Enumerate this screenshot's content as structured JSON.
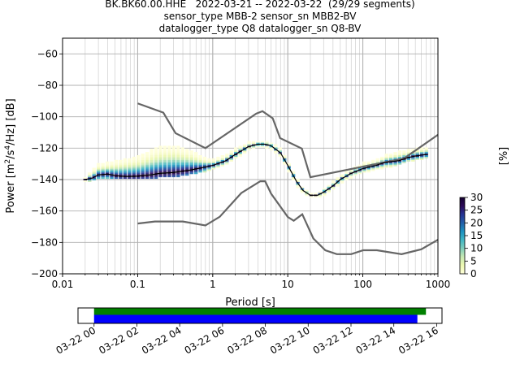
{
  "title_lines": [
    "BK.BK60.00.HHE   2022-03-21 -- 2022-03-22  (29/29 segments)",
    "sensor_type MBB-2 sensor_sn MBB2-BV",
    "datalogger_type Q8 datalogger_sn Q8-BV"
  ],
  "chart_data": [
    {
      "type": "heatmap",
      "xlabel": "Period [s]",
      "ylabel_parts": [
        "Power [",
        "m",
        "2",
        "/",
        "s",
        "4",
        "/",
        "Hz",
        "] [dB]"
      ],
      "xscale": "log",
      "xlim": [
        0.01,
        1000
      ],
      "ylim": [
        -200,
        -50
      ],
      "x_ticks": [
        0.01,
        0.1,
        1,
        10,
        100,
        1000
      ],
      "x_tick_labels": [
        "0.01",
        "0.1",
        "1",
        "10",
        "100",
        "1000"
      ],
      "y_ticks": [
        -200,
        -180,
        -160,
        -140,
        -120,
        -100,
        -80,
        -60
      ],
      "y_tick_labels": [
        "−200",
        "−180",
        "−160",
        "−140",
        "−120",
        "−100",
        "−80",
        "−60"
      ],
      "grid": true,
      "colorbar": {
        "label": "[%]",
        "range": [
          0,
          30
        ],
        "ticks": [
          0,
          5,
          10,
          15,
          20,
          25,
          30
        ],
        "tick_labels": [
          "0",
          "5",
          "10",
          "15",
          "20",
          "25",
          "30"
        ],
        "colormap": [
          "#ffffd9",
          "#edf8b1",
          "#c7e9b4",
          "#7fcdbb",
          "#41b6c4",
          "#1d91c0",
          "#225ea8",
          "#253494",
          "#2c0a57",
          "#140030"
        ]
      },
      "series": [
        {
          "kind": "noise_model_high",
          "color": "#666666",
          "x": [
            0.1,
            0.22,
            0.32,
            0.8,
            3.8,
            4.6,
            6.3,
            7.9,
            15.4,
            20,
            354,
            1000
          ],
          "y": [
            -91.5,
            -97.4,
            -110.5,
            -120,
            -98,
            -96.5,
            -101,
            -113.6,
            -120.3,
            -138.5,
            -126.5,
            -111.5
          ]
        },
        {
          "kind": "noise_model_low",
          "color": "#666666",
          "x": [
            0.1,
            0.17,
            0.4,
            0.8,
            1.24,
            2.4,
            4.3,
            5,
            6,
            10,
            12,
            15.6,
            21.9,
            31.6,
            45,
            70,
            101,
            154,
            328,
            600,
            1000
          ],
          "y": [
            -168,
            -166.7,
            -166.7,
            -169.2,
            -163.7,
            -148.6,
            -141.1,
            -141.1,
            -149,
            -163.8,
            -166.2,
            -162.1,
            -177.5,
            -185,
            -187.5,
            -187.5,
            -185,
            -185,
            -187.5,
            -184.4,
            -178.3
          ]
        },
        {
          "kind": "psd_mode",
          "color": "#000000",
          "x": [
            0.02,
            0.025,
            0.03,
            0.04,
            0.05,
            0.07,
            0.1,
            0.15,
            0.2,
            0.3,
            0.5,
            0.8,
            1,
            1.5,
            2,
            3,
            4,
            5,
            6,
            8,
            10,
            13,
            16,
            20,
            25,
            30,
            40,
            50,
            70,
            100,
            150,
            200,
            300,
            400,
            500,
            700
          ],
          "y": [
            -140,
            -139,
            -137,
            -136.5,
            -137.5,
            -138,
            -137.8,
            -137,
            -136,
            -135.5,
            -134,
            -132,
            -131,
            -128,
            -124,
            -119,
            -117.5,
            -117.5,
            -118.5,
            -123,
            -131,
            -141,
            -147,
            -150,
            -150,
            -148,
            -144,
            -140,
            -136,
            -133,
            -131,
            -129,
            -128,
            -126,
            -125,
            -124
          ]
        },
        {
          "kind": "psd_spread",
          "x": [
            0.02,
            0.03,
            0.05,
            0.1,
            0.15,
            0.2,
            0.3,
            0.5,
            0.8,
            1,
            1.5,
            2,
            3,
            4,
            5,
            6,
            8,
            10,
            13,
            16,
            20,
            25,
            30,
            40,
            50,
            70,
            100,
            150,
            200,
            300,
            400,
            500,
            700
          ],
          "upper": [
            -139,
            -131,
            -129,
            -126,
            -122,
            -120,
            -119,
            -122,
            -127,
            -128,
            -125,
            -121,
            -117,
            -116,
            -116,
            -117,
            -121,
            -129,
            -139,
            -146,
            -149,
            -149,
            -147,
            -142,
            -138,
            -134,
            -130,
            -128,
            -125,
            -123,
            -122,
            -121,
            -120
          ],
          "lower": [
            -141,
            -139,
            -139,
            -139,
            -138.5,
            -138,
            -137.5,
            -136,
            -134,
            -133,
            -130,
            -126,
            -121,
            -119,
            -119,
            -120,
            -125,
            -133,
            -143,
            -148,
            -151,
            -151,
            -150,
            -146,
            -142,
            -138,
            -135,
            -133,
            -132,
            -130,
            -128,
            -127,
            -126
          ]
        }
      ]
    },
    {
      "type": "timeline",
      "x_tick_labels": [
        "03-22 00",
        "03-22 02",
        "03-22 04",
        "03-22 06",
        "03-22 08",
        "03-22 10",
        "03-22 12",
        "03-22 14",
        "03-22 16"
      ],
      "x_ticks_hours": [
        0,
        2,
        4,
        6,
        8,
        10,
        12,
        14,
        16
      ],
      "xlim_hours": [
        -0.75,
        16.25
      ],
      "bars": [
        {
          "color": "#008000",
          "start_hours": 0.0,
          "end_hours": 15.5
        },
        {
          "color": "#0000ff",
          "start_hours": 0.0,
          "end_hours": 15.1
        }
      ]
    }
  ]
}
